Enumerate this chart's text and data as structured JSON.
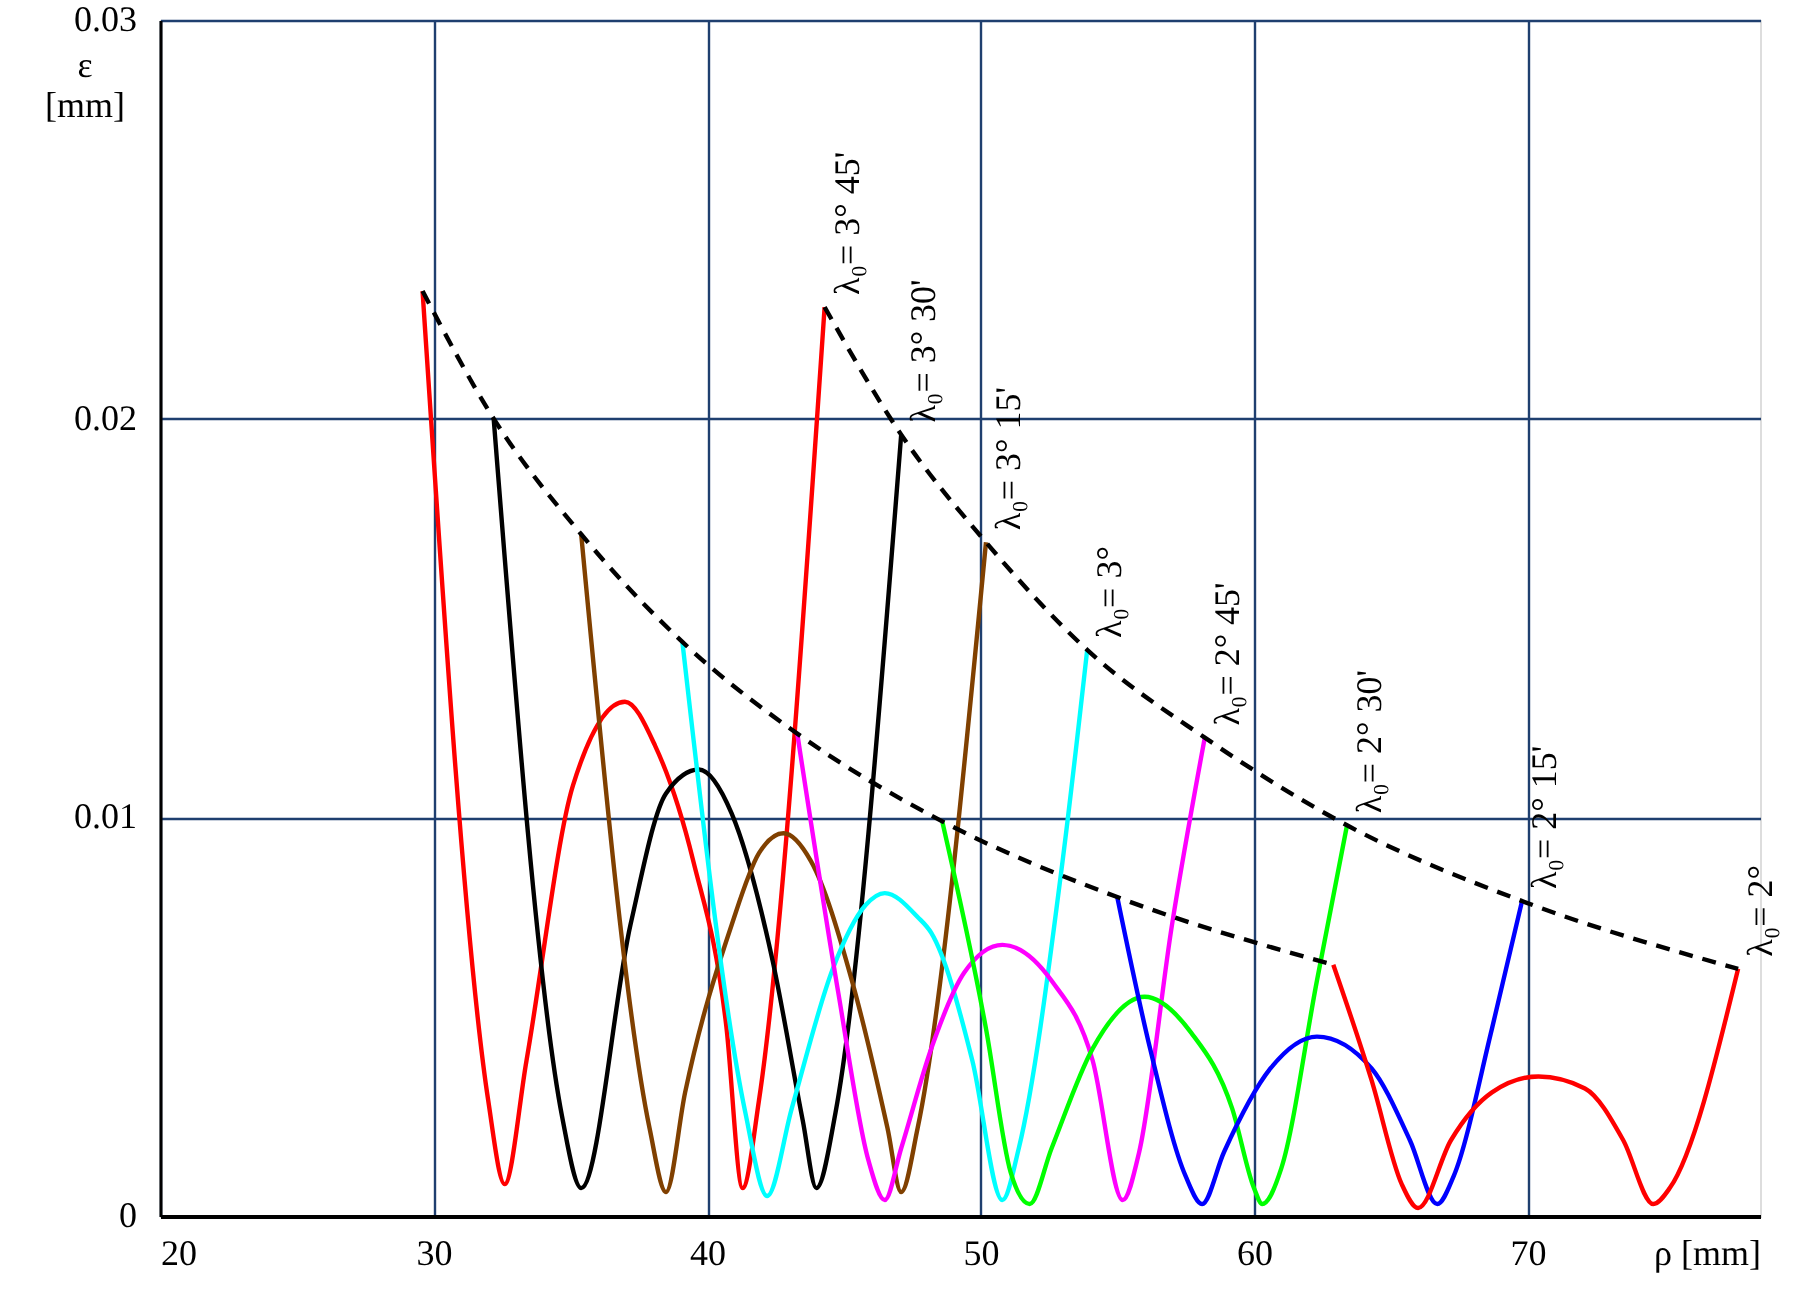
{
  "chart_data": {
    "type": "line",
    "xlabel": "ρ [mm]",
    "ylabel": "ε [mm]",
    "xlim": [
      20,
      78.5
    ],
    "ylim": [
      0,
      0.03
    ],
    "xticks": [
      20,
      30,
      40,
      50,
      60,
      70
    ],
    "yticks": [
      0,
      0.01,
      0.02,
      0.03
    ],
    "grid": true,
    "line_style": "solid",
    "series": [
      {
        "name": "λ₀= 3° 45'",
        "color": "#ff0000",
        "x": [
          29.6,
          32.0,
          32.6,
          33.4,
          35.1,
          37.0,
          38.1,
          39.5,
          40.7,
          41.3,
          41.9,
          44.3
        ],
        "values": [
          0.0232,
          0.0029,
          0.0008,
          0.0039,
          0.0108,
          0.0129,
          0.0118,
          0.0089,
          0.0048,
          0.0007,
          0.0029,
          0.0228
        ]
      },
      {
        "name": "λ₀= 3° 30'",
        "color": "#000000",
        "x": [
          32.2,
          34.7,
          35.4,
          37.2,
          38.5,
          39.7,
          40.9,
          42.4,
          43.5,
          44.0,
          44.7,
          47.1
        ],
        "values": [
          0.02,
          0.0025,
          0.0007,
          0.0073,
          0.0106,
          0.0112,
          0.0101,
          0.0064,
          0.0024,
          0.0007,
          0.0026,
          0.0196
        ]
      },
      {
        "name": "λ₀= 3° 15'",
        "color": "#804000",
        "x": [
          35.4,
          37.9,
          38.5,
          39.2,
          40.9,
          41.9,
          42.8,
          43.8,
          45.3,
          46.6,
          47.1,
          47.7,
          50.2
        ],
        "values": [
          0.0171,
          0.0022,
          0.0006,
          0.0031,
          0.0073,
          0.0091,
          0.0096,
          0.0089,
          0.0059,
          0.0022,
          0.0006,
          0.0022,
          0.0169
        ]
      },
      {
        "name": "λ₀= 3°",
        "color": "#00ffff",
        "x": [
          39.1,
          41.4,
          42.2,
          43.1,
          44.6,
          45.8,
          46.5,
          47.7,
          48.2,
          49.7,
          50.8,
          51.4,
          53.0,
          53.9
        ],
        "values": [
          0.0144,
          0.0026,
          0.0005,
          0.0027,
          0.0062,
          0.0078,
          0.0081,
          0.0075,
          0.0071,
          0.0039,
          0.0004,
          0.0017,
          0.0089,
          0.0142
        ]
      },
      {
        "name": "λ₀= 2° 45'",
        "color": "#ff00ff",
        "x": [
          43.3,
          44.8,
          45.9,
          46.5,
          47.1,
          48.2,
          49.4,
          50.8,
          52.6,
          54.1,
          55.2,
          55.8,
          57.0,
          58.2
        ],
        "values": [
          0.0121,
          0.0056,
          0.0014,
          0.0004,
          0.0017,
          0.0042,
          0.0061,
          0.0068,
          0.0059,
          0.0039,
          0.0004,
          0.0016,
          0.0073,
          0.012
        ]
      },
      {
        "name": "λ₀= 2° 30'",
        "color": "#00ff00",
        "x": [
          48.6,
          50.2,
          51.1,
          51.8,
          52.6,
          54.1,
          56.0,
          57.7,
          59.2,
          60.0,
          60.3,
          61.0,
          62.3,
          63.4
        ],
        "values": [
          0.0099,
          0.0047,
          0.0011,
          0.0003,
          0.0017,
          0.0042,
          0.0055,
          0.0046,
          0.0027,
          0.0007,
          0.0003,
          0.0012,
          0.0059,
          0.0098
        ]
      },
      {
        "name": "λ₀= 2° 15'",
        "color": "#0000ff",
        "x": [
          55.0,
          56.2,
          57.5,
          58.1,
          58.9,
          60.6,
          62.3,
          64.3,
          65.7,
          66.7,
          67.3,
          68.7,
          69.8
        ],
        "values": [
          0.008,
          0.0042,
          0.001,
          0.0003,
          0.0016,
          0.0037,
          0.0045,
          0.0037,
          0.0019,
          0.0003,
          0.001,
          0.0047,
          0.0079
        ]
      },
      {
        "name": "λ₀= 2°",
        "color": "#ff0000",
        "x": [
          62.9,
          64.3,
          65.4,
          66.0,
          67.2,
          68.7,
          70.4,
          72.1,
          73.5,
          74.6,
          75.2,
          77.7
        ],
        "values": [
          0.0063,
          0.0034,
          0.0008,
          0.0002,
          0.0019,
          0.0031,
          0.0035,
          0.0032,
          0.0019,
          0.0003,
          0.0007,
          0.0062
        ]
      },
      {
        "color": "#000000",
        "line_style": "dashed",
        "x": [
          29.6,
          32.2,
          35.4,
          39.1,
          43.3,
          48.6,
          55.0,
          62.9
        ],
        "values": [
          0.0232,
          0.02,
          0.0171,
          0.0144,
          0.0121,
          0.0099,
          0.008,
          0.0063
        ]
      },
      {
        "color": "#000000",
        "line_style": "dashed",
        "x": [
          44.3,
          47.1,
          50.2,
          53.9,
          58.2,
          63.4,
          69.8,
          77.7
        ],
        "values": [
          0.0228,
          0.0196,
          0.0169,
          0.0142,
          0.012,
          0.0098,
          0.0079,
          0.0062
        ]
      }
    ]
  }
}
